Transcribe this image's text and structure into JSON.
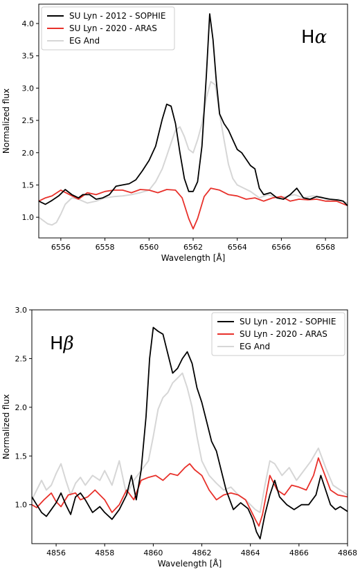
{
  "chart_data": [
    {
      "type": "line",
      "annotation": {
        "letter": "H",
        "symbol": "α"
      },
      "xlabel": "Wavelength [Å]",
      "ylabel": "Normalized flux",
      "xlim": [
        6555,
        6569
      ],
      "ylim": [
        0.68,
        4.3
      ],
      "xticks": [
        "6556",
        "6558",
        "6560",
        "6562",
        "6564",
        "6566",
        "6568"
      ],
      "yticks": [
        "1.0",
        "1.5",
        "2.0",
        "2.5",
        "3.0",
        "3.5",
        "4.0"
      ],
      "grid": false,
      "legend_position": "top-left",
      "series": [
        {
          "name": "SU Lyn - 2012 - SOPHIE",
          "color": "#000000",
          "x": [
            6555.0,
            6555.3,
            6555.6,
            6555.9,
            6556.2,
            6556.5,
            6556.8,
            6557.0,
            6557.3,
            6557.6,
            6557.9,
            6558.2,
            6558.5,
            6558.8,
            6559.1,
            6559.4,
            6559.7,
            6560.0,
            6560.3,
            6560.6,
            6560.8,
            6561.0,
            6561.2,
            6561.4,
            6561.6,
            6561.8,
            6562.0,
            6562.2,
            6562.4,
            6562.6,
            6562.75,
            6562.9,
            6563.05,
            6563.2,
            6563.4,
            6563.6,
            6563.8,
            6564.0,
            6564.2,
            6564.4,
            6564.6,
            6564.8,
            6565.0,
            6565.2,
            6565.5,
            6565.8,
            6566.1,
            6566.4,
            6566.7,
            6567.0,
            6567.3,
            6567.6,
            6567.9,
            6568.2,
            6568.5,
            6568.8,
            6569.0
          ],
          "y": [
            1.25,
            1.2,
            1.26,
            1.33,
            1.43,
            1.35,
            1.3,
            1.35,
            1.35,
            1.28,
            1.3,
            1.35,
            1.48,
            1.5,
            1.52,
            1.58,
            1.72,
            1.88,
            2.1,
            2.52,
            2.75,
            2.72,
            2.45,
            2.0,
            1.6,
            1.4,
            1.4,
            1.55,
            2.1,
            3.2,
            4.15,
            3.75,
            3.1,
            2.6,
            2.45,
            2.35,
            2.2,
            2.05,
            2.0,
            1.9,
            1.8,
            1.75,
            1.45,
            1.35,
            1.38,
            1.3,
            1.28,
            1.35,
            1.45,
            1.3,
            1.28,
            1.32,
            1.3,
            1.28,
            1.27,
            1.25,
            1.18
          ]
        },
        {
          "name": "SU Lyn - 2020 - ARAS",
          "color": "#e8302a",
          "x": [
            6555.0,
            6555.3,
            6555.6,
            6556.0,
            6556.4,
            6556.8,
            6557.2,
            6557.6,
            6558.0,
            6558.4,
            6558.8,
            6559.2,
            6559.6,
            6560.0,
            6560.4,
            6560.8,
            6561.2,
            6561.5,
            6561.8,
            6562.0,
            6562.2,
            6562.5,
            6562.8,
            6563.2,
            6563.6,
            6564.0,
            6564.4,
            6564.8,
            6565.2,
            6565.6,
            6566.0,
            6566.4,
            6566.8,
            6567.2,
            6567.6,
            6568.0,
            6568.5,
            6569.0
          ],
          "y": [
            1.25,
            1.3,
            1.33,
            1.42,
            1.35,
            1.28,
            1.38,
            1.35,
            1.4,
            1.42,
            1.42,
            1.38,
            1.43,
            1.42,
            1.38,
            1.43,
            1.42,
            1.3,
            0.98,
            0.82,
            0.98,
            1.32,
            1.45,
            1.42,
            1.35,
            1.33,
            1.28,
            1.3,
            1.25,
            1.3,
            1.32,
            1.25,
            1.28,
            1.27,
            1.28,
            1.25,
            1.25,
            1.18
          ]
        },
        {
          "name": "EG And",
          "color": "#d6d6d6",
          "x": [
            6555.0,
            6555.2,
            6555.4,
            6555.6,
            6555.8,
            6556.0,
            6556.2,
            6556.5,
            6556.8,
            6557.2,
            6557.6,
            6558.0,
            6558.4,
            6558.8,
            6559.2,
            6559.6,
            6560.0,
            6560.3,
            6560.6,
            6560.8,
            6561.0,
            6561.2,
            6561.4,
            6561.6,
            6561.8,
            6562.0,
            6562.2,
            6562.4,
            6562.6,
            6562.8,
            6563.0,
            6563.2,
            6563.4,
            6563.6,
            6563.8,
            6564.0,
            6564.3,
            6564.6,
            6565.0,
            6565.4,
            6565.8,
            6566.2,
            6566.6,
            6567.0,
            6567.4,
            6567.8,
            6568.2,
            6568.6,
            6569.0
          ],
          "y": [
            1.0,
            0.95,
            0.9,
            0.88,
            0.92,
            1.05,
            1.2,
            1.3,
            1.28,
            1.22,
            1.25,
            1.3,
            1.32,
            1.33,
            1.35,
            1.38,
            1.42,
            1.55,
            1.75,
            1.95,
            2.15,
            2.35,
            2.4,
            2.25,
            2.05,
            2.0,
            2.2,
            2.45,
            2.85,
            3.1,
            3.05,
            2.6,
            2.2,
            1.82,
            1.6,
            1.5,
            1.45,
            1.4,
            1.3,
            1.35,
            1.3,
            1.32,
            1.35,
            1.3,
            1.33,
            1.32,
            1.25,
            1.28,
            1.22
          ]
        }
      ]
    },
    {
      "type": "line",
      "annotation": {
        "letter": "H",
        "symbol": "β"
      },
      "xlabel": "Wavelength [Å]",
      "ylabel": "Normalized flux",
      "xlim": [
        4855,
        4868
      ],
      "ylim": [
        0.6,
        3.0
      ],
      "xticks": [
        "4856",
        "4858",
        "4860",
        "4862",
        "4864",
        "4866",
        "4868"
      ],
      "yticks": [
        "1.0",
        "1.5",
        "2.0",
        "2.5",
        "3.0"
      ],
      "grid": false,
      "legend_position": "top-right",
      "series": [
        {
          "name": "SU Lyn - 2012 - SOPHIE",
          "color": "#000000",
          "x": [
            4855.0,
            4855.2,
            4855.4,
            4855.6,
            4855.8,
            4856.0,
            4856.2,
            4856.4,
            4856.6,
            4856.8,
            4857.0,
            4857.2,
            4857.5,
            4857.8,
            4858.0,
            4858.3,
            4858.6,
            4858.9,
            4859.1,
            4859.3,
            4859.5,
            4859.7,
            4859.85,
            4860.0,
            4860.2,
            4860.4,
            4860.6,
            4860.8,
            4861.0,
            4861.2,
            4861.4,
            4861.6,
            4861.8,
            4862.0,
            4862.2,
            4862.4,
            4862.6,
            4862.8,
            4863.0,
            4863.3,
            4863.6,
            4863.9,
            4864.1,
            4864.25,
            4864.4,
            4864.6,
            4864.8,
            4865.0,
            4865.2,
            4865.5,
            4865.8,
            4866.1,
            4866.4,
            4866.7,
            4866.9,
            4867.1,
            4867.3,
            4867.5,
            4867.7,
            4868.0
          ],
          "y": [
            1.08,
            1.0,
            0.92,
            0.88,
            0.95,
            1.02,
            1.12,
            1.0,
            0.9,
            1.08,
            1.12,
            1.05,
            0.92,
            0.98,
            0.92,
            0.85,
            0.95,
            1.1,
            1.3,
            1.05,
            1.35,
            1.9,
            2.5,
            2.82,
            2.78,
            2.75,
            2.55,
            2.35,
            2.4,
            2.5,
            2.57,
            2.45,
            2.2,
            2.05,
            1.85,
            1.65,
            1.55,
            1.35,
            1.15,
            0.95,
            1.02,
            0.96,
            0.85,
            0.72,
            0.65,
            0.9,
            1.1,
            1.25,
            1.08,
            1.0,
            0.95,
            1.0,
            1.0,
            1.1,
            1.3,
            1.15,
            1.0,
            0.95,
            0.98,
            0.93
          ]
        },
        {
          "name": "SU Lyn - 2020 - ARAS",
          "color": "#e8302a",
          "x": [
            4855.0,
            4855.2,
            4855.5,
            4855.8,
            4856.0,
            4856.2,
            4856.5,
            4856.8,
            4857.0,
            4857.3,
            4857.6,
            4858.0,
            4858.3,
            4858.6,
            4858.9,
            4859.2,
            4859.5,
            4859.8,
            4860.1,
            4860.4,
            4860.7,
            4861.0,
            4861.3,
            4861.5,
            4861.7,
            4862.0,
            4862.3,
            4862.6,
            4862.9,
            4863.2,
            4863.5,
            4863.8,
            4864.0,
            4864.2,
            4864.35,
            4864.5,
            4864.8,
            4865.1,
            4865.4,
            4865.7,
            4866.0,
            4866.3,
            4866.6,
            4866.8,
            4867.0,
            4867.3,
            4867.6,
            4868.0
          ],
          "y": [
            1.0,
            0.97,
            1.05,
            1.12,
            1.03,
            0.98,
            1.1,
            1.12,
            1.05,
            1.08,
            1.15,
            1.05,
            0.92,
            1.0,
            1.15,
            1.05,
            1.25,
            1.28,
            1.3,
            1.25,
            1.32,
            1.3,
            1.38,
            1.42,
            1.36,
            1.3,
            1.15,
            1.05,
            1.1,
            1.12,
            1.1,
            1.05,
            0.95,
            0.85,
            0.78,
            0.9,
            1.3,
            1.15,
            1.1,
            1.2,
            1.18,
            1.15,
            1.3,
            1.48,
            1.35,
            1.15,
            1.1,
            1.08
          ]
        },
        {
          "name": "EG And",
          "color": "#d6d6d6",
          "x": [
            4855.0,
            4855.2,
            4855.4,
            4855.6,
            4855.8,
            4856.0,
            4856.2,
            4856.4,
            4856.6,
            4856.8,
            4857.0,
            4857.2,
            4857.5,
            4857.8,
            4858.0,
            4858.3,
            4858.6,
            4858.9,
            4859.2,
            4859.5,
            4859.8,
            4860.0,
            4860.2,
            4860.4,
            4860.6,
            4860.8,
            4861.0,
            4861.2,
            4861.4,
            4861.6,
            4861.8,
            4862.0,
            4862.3,
            4862.6,
            4862.9,
            4863.2,
            4863.5,
            4863.8,
            4864.0,
            4864.2,
            4864.4,
            4864.6,
            4864.8,
            4865.0,
            4865.3,
            4865.6,
            4865.9,
            4866.2,
            4866.5,
            4866.8,
            4867.1,
            4867.4,
            4867.7,
            4868.0
          ],
          "y": [
            1.05,
            1.15,
            1.25,
            1.15,
            1.2,
            1.32,
            1.42,
            1.25,
            1.1,
            1.22,
            1.28,
            1.2,
            1.3,
            1.25,
            1.35,
            1.2,
            1.45,
            1.1,
            1.25,
            1.35,
            1.45,
            1.7,
            1.98,
            2.1,
            2.15,
            2.25,
            2.3,
            2.35,
            2.2,
            2.0,
            1.7,
            1.45,
            1.3,
            1.22,
            1.15,
            1.18,
            1.1,
            1.05,
            1.0,
            0.95,
            0.92,
            1.2,
            1.45,
            1.42,
            1.3,
            1.38,
            1.25,
            1.35,
            1.45,
            1.58,
            1.38,
            1.2,
            1.15,
            1.1
          ]
        }
      ]
    }
  ]
}
